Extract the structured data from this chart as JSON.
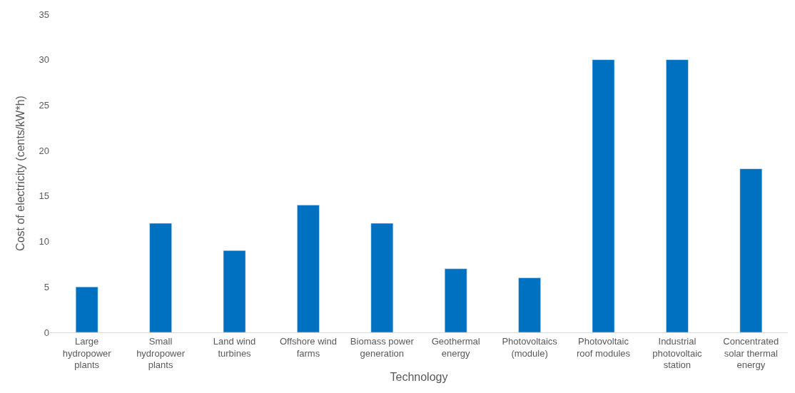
{
  "chart_data": {
    "type": "bar",
    "xlabel": "Technology",
    "ylabel": "Cost of electricity (cents/kW*h)",
    "categories": [
      "Large hydropower plants",
      "Small hydropower plants",
      "Land wind turbines",
      "Offshore wind farms",
      "Biomass power generation",
      "Geothermal energy",
      "Photovoltaics (module)",
      "Photovoltaic roof modules",
      "Industrial photovoltaic station",
      "Concentrated solar thermal energy"
    ],
    "values": [
      5,
      12,
      9,
      14,
      12,
      7,
      6,
      30,
      30,
      18
    ],
    "color": "#0070c0",
    "ylim": [
      0,
      35
    ],
    "yticks": [
      0,
      5,
      10,
      15,
      20,
      25,
      30,
      35
    ],
    "grid": false
  }
}
